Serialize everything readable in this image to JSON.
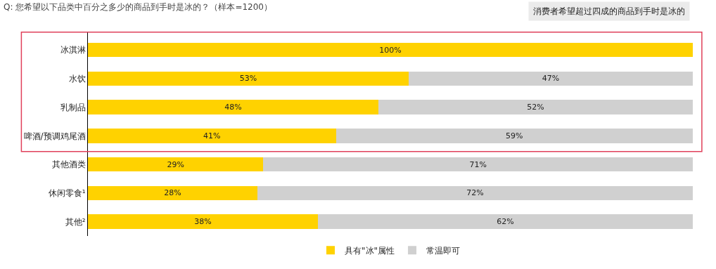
{
  "chart_data": {
    "type": "bar",
    "orientation": "horizontal",
    "stacked": true,
    "title": "Q: 您希望以下品类中百分之多少的商品到手时是冰的？（样本=1200）",
    "annotations": [
      "消费者希望超过四成的商品到手时是冰的"
    ],
    "categories": [
      "冰淇淋",
      "水饮",
      "乳制品",
      "啤酒/预调鸡尾酒",
      "其他酒类",
      "休闲零食¹",
      "其他²"
    ],
    "xlim": [
      0,
      100
    ],
    "tick_labels": "y",
    "legend": "bottom",
    "series": [
      {
        "name": "具有\"冰\"属性",
        "color": "#ffd200",
        "values": [
          100,
          53,
          48,
          41,
          29,
          28,
          38
        ],
        "value_labels": [
          "100%",
          "53%",
          "48%",
          "41%",
          "29%",
          "28%",
          "38%"
        ]
      },
      {
        "name": "常温即可",
        "color": "#d0d0d0",
        "values": [
          0,
          47,
          52,
          59,
          71,
          72,
          62
        ],
        "value_labels": [
          null,
          "47%",
          "52%",
          "59%",
          "71%",
          "72%",
          "62%"
        ]
      }
    ]
  }
}
